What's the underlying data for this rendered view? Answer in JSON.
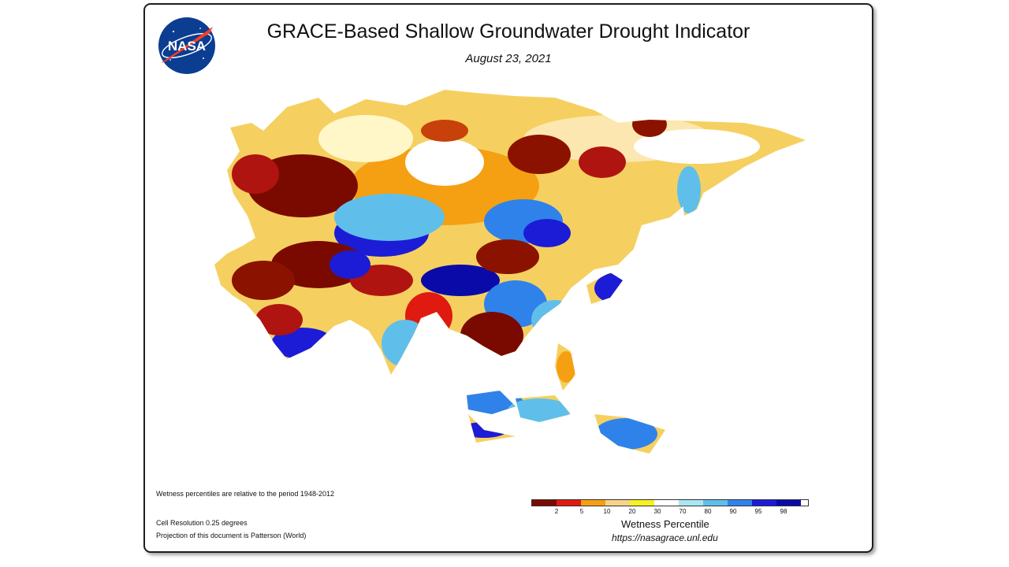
{
  "title": "GRACE-Based Shallow Groundwater Drought Indicator",
  "date": "August 23, 2021",
  "logo_text": "NASA",
  "notes": {
    "period": "Wetness percentiles are relative to the period 1948-2012",
    "resolution": "Cell Resolution 0.25 degrees",
    "projection": "Projection of this document is Patterson (World)"
  },
  "legend": {
    "label": "Wetness Percentile",
    "ticks": [
      "2",
      "5",
      "10",
      "20",
      "30",
      "70",
      "80",
      "90",
      "95",
      "98"
    ],
    "colors": [
      "#7a0a00",
      "#e01a10",
      "#f5a012",
      "#f7d38a",
      "#f5f021",
      "#ffffff",
      "#a8e6f2",
      "#5fbfea",
      "#2f82ea",
      "#1c1cd6",
      "#0a0aa8"
    ]
  },
  "url": "https://nasagrace.unl.edu"
}
